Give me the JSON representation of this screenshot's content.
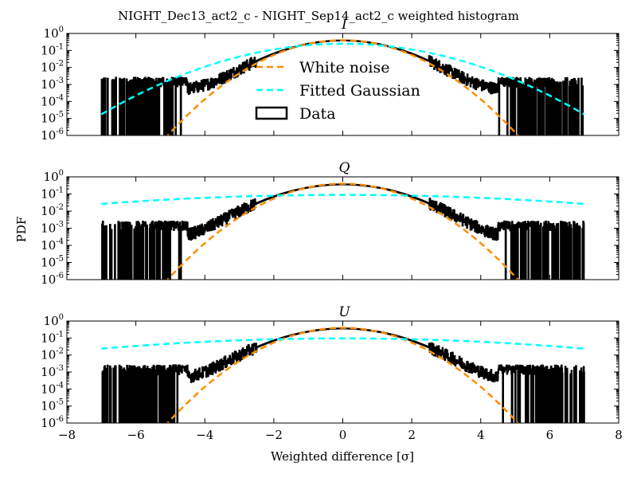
{
  "figure": {
    "title": "NIGHT_Dec13_act2_c - NIGHT_Sep14_act2_c weighted histogram",
    "xlabel": "Weighted difference [σ]",
    "ylabel": "PDF"
  },
  "legend": {
    "placement": "upper-center (top panel)",
    "items": [
      {
        "label": "White noise",
        "color": "#ff8c00",
        "style": "dashed"
      },
      {
        "label": "Fitted Gaussian",
        "color": "#00ffff",
        "style": "dashed"
      },
      {
        "label": "Data",
        "color": "#000000",
        "style": "box"
      }
    ]
  },
  "colors": {
    "white_noise": "#ff8c00",
    "fitted_gaussian": "#00ffff",
    "data": "#000000"
  },
  "chart_data": [
    {
      "type": "line",
      "title": "I",
      "xlim": [
        -8,
        8
      ],
      "ylim": [
        1e-06,
        1
      ],
      "yscale": "log",
      "xticks": [
        "−8",
        "−6",
        "−4",
        "−2",
        "0",
        "2",
        "4",
        "6",
        "8"
      ],
      "yticks": [
        "10^0",
        "10^-1",
        "10^-2",
        "10^-3",
        "10^-4",
        "10^-5",
        "10^-6"
      ],
      "data_range": [
        -7,
        7
      ],
      "series": [
        {
          "name": "White noise",
          "kind": "gaussian",
          "mu": 0.0,
          "sigma": 1.0
        },
        {
          "name": "Fitted Gaussian",
          "kind": "gaussian",
          "mu": 0.0,
          "sigma": 1.6
        },
        {
          "name": "Data",
          "kind": "histogram",
          "core_sigma": 1.05,
          "tail_level": 0.006,
          "floor_level": 0.0009,
          "peak": 0.38
        }
      ]
    },
    {
      "type": "line",
      "title": "Q",
      "xlim": [
        -8,
        8
      ],
      "ylim": [
        1e-06,
        1
      ],
      "yscale": "log",
      "xticks": [
        "−8",
        "−6",
        "−4",
        "−2",
        "0",
        "2",
        "4",
        "6",
        "8"
      ],
      "yticks": [
        "10^0",
        "10^-1",
        "10^-2",
        "10^-3",
        "10^-4",
        "10^-5",
        "10^-6"
      ],
      "data_range": [
        -7,
        7
      ],
      "series": [
        {
          "name": "White noise",
          "kind": "gaussian",
          "mu": 0.0,
          "sigma": 1.0
        },
        {
          "name": "Fitted Gaussian",
          "kind": "gaussian",
          "mu": 0.0,
          "sigma": 4.5
        },
        {
          "name": "Data",
          "kind": "histogram",
          "core_sigma": 1.1,
          "tail_level": 0.004,
          "floor_level": 0.0009,
          "peak": 0.36
        }
      ]
    },
    {
      "type": "line",
      "title": "U",
      "xlim": [
        -8,
        8
      ],
      "ylim": [
        1e-06,
        1
      ],
      "yscale": "log",
      "xticks": [
        "−8",
        "−6",
        "−4",
        "−2",
        "0",
        "2",
        "4",
        "6",
        "8"
      ],
      "yticks": [
        "10^0",
        "10^-1",
        "10^-2",
        "10^-3",
        "10^-4",
        "10^-5",
        "10^-6"
      ],
      "data_range": [
        -7,
        7
      ],
      "series": [
        {
          "name": "White noise",
          "kind": "gaussian",
          "mu": 0.0,
          "sigma": 1.0
        },
        {
          "name": "Fitted Gaussian",
          "kind": "gaussian",
          "mu": 0.0,
          "sigma": 4.2
        },
        {
          "name": "Data",
          "kind": "histogram",
          "core_sigma": 1.1,
          "tail_level": 0.005,
          "floor_level": 0.0009,
          "peak": 0.36
        }
      ]
    }
  ]
}
